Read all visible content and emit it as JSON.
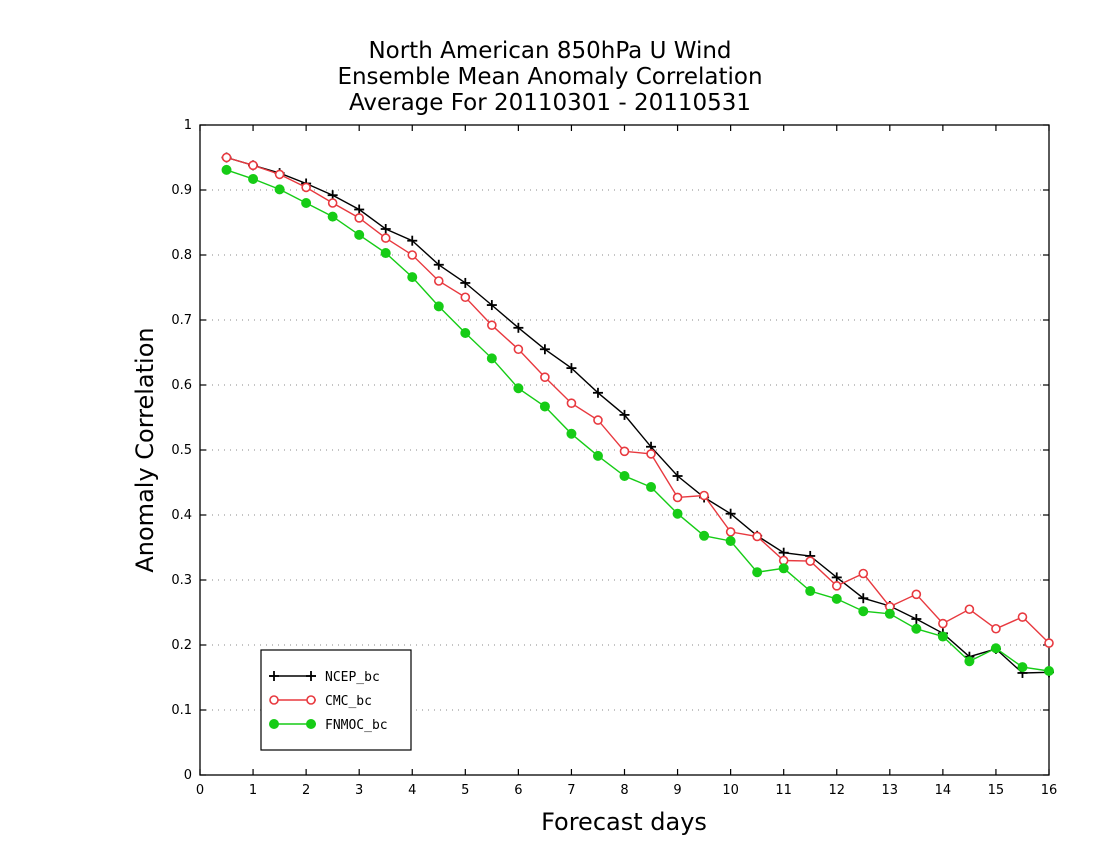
{
  "chart_data": {
    "type": "line",
    "title": [
      "North American 850hPa U Wind",
      "Ensemble Mean Anomaly Correlation",
      "Average For 20110301 - 20110531"
    ],
    "xlabel": "Forecast days",
    "ylabel": "Anomaly Correlation",
    "xlim": [
      0,
      16
    ],
    "ylim": [
      0,
      1
    ],
    "xticks": [
      "0",
      "1",
      "2",
      "3",
      "4",
      "5",
      "6",
      "7",
      "8",
      "9",
      "10",
      "11",
      "12",
      "13",
      "14",
      "15",
      "16"
    ],
    "yticks": [
      "0",
      "0.1",
      "0.2",
      "0.3",
      "0.4",
      "0.5",
      "0.6",
      "0.7",
      "0.8",
      "0.9",
      "1"
    ],
    "grid": "horizontal dotted",
    "legend_position": "bottom-left",
    "x": [
      0.5,
      1,
      1.5,
      2,
      2.5,
      3,
      3.5,
      4,
      4.5,
      5,
      5.5,
      6,
      6.5,
      7,
      7.5,
      8,
      8.5,
      9,
      9.5,
      10,
      10.5,
      11,
      11.5,
      12,
      12.5,
      13,
      13.5,
      14,
      14.5,
      15,
      15.5,
      16
    ],
    "series": [
      {
        "name": "NCEP_bc",
        "color": "#000000",
        "marker": "plus",
        "values": [
          0.95,
          0.938,
          0.926,
          0.91,
          0.892,
          0.87,
          0.84,
          0.822,
          0.785,
          0.757,
          0.723,
          0.688,
          0.655,
          0.626,
          0.588,
          0.554,
          0.505,
          0.46,
          0.427,
          0.402,
          0.368,
          0.342,
          0.337,
          0.304,
          0.272,
          0.26,
          0.24,
          0.218,
          0.182,
          0.194,
          0.157,
          0.158
        ]
      },
      {
        "name": "CMC_bc",
        "color": "#e8393f",
        "marker": "open-circle",
        "values": [
          0.95,
          0.938,
          0.924,
          0.904,
          0.88,
          0.857,
          0.826,
          0.8,
          0.76,
          0.735,
          0.692,
          0.655,
          0.612,
          0.572,
          0.546,
          0.498,
          0.494,
          0.427,
          0.43,
          0.374,
          0.367,
          0.33,
          0.329,
          0.291,
          0.31,
          0.259,
          0.278,
          0.233,
          0.255,
          0.225,
          0.243,
          0.203
        ]
      },
      {
        "name": "FNMOC_bc",
        "color": "#16cc16",
        "marker": "filled-circle",
        "values": [
          0.931,
          0.917,
          0.901,
          0.88,
          0.859,
          0.831,
          0.803,
          0.766,
          0.721,
          0.68,
          0.641,
          0.595,
          0.567,
          0.525,
          0.491,
          0.46,
          0.443,
          0.402,
          0.368,
          0.36,
          0.312,
          0.318,
          0.283,
          0.271,
          0.252,
          0.248,
          0.225,
          0.213,
          0.175,
          0.195,
          0.166,
          0.16
        ]
      }
    ]
  }
}
